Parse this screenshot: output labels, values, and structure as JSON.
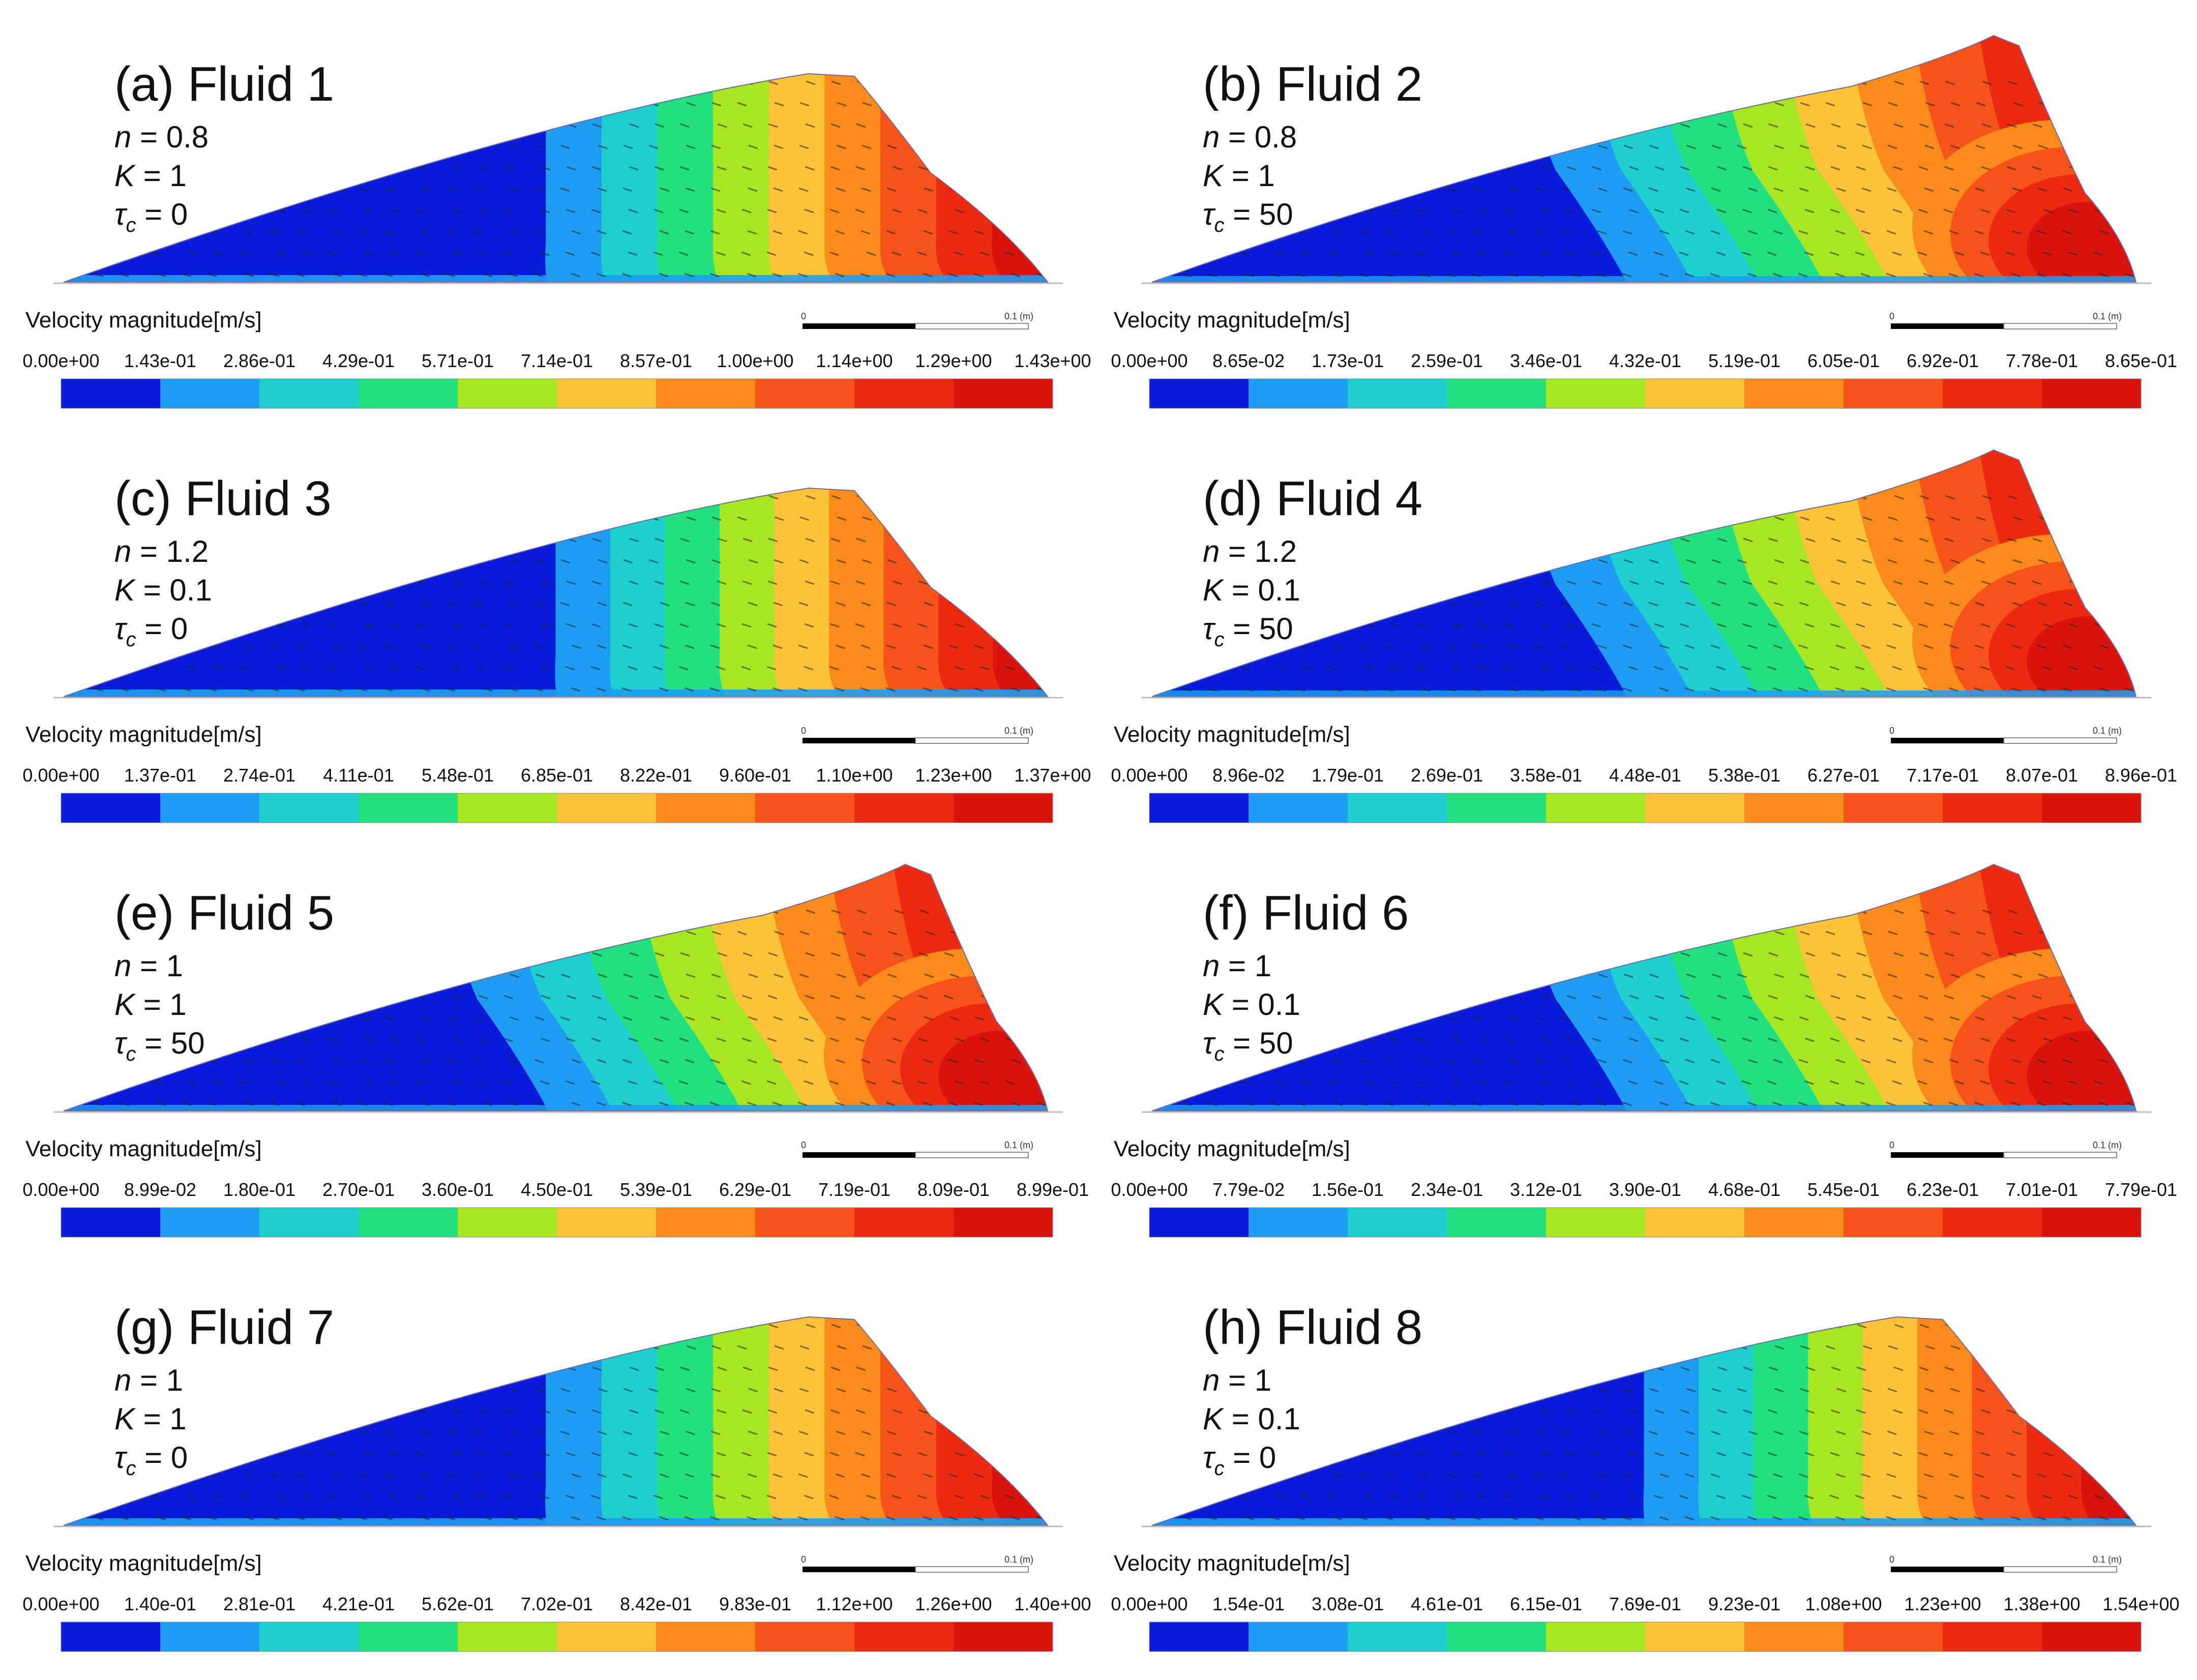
{
  "figure": {
    "legend_label": "Velocity magnitude[m/s]",
    "scale_bar": {
      "start": "0",
      "end": "0.1 (m)"
    },
    "colors": [
      "#0a1bd9",
      "#1f9df2",
      "#1fcfcf",
      "#22e080",
      "#a8e624",
      "#fbc23a",
      "#f98b1c",
      "#f5531a",
      "#ec2a12",
      "#d9140e"
    ],
    "panels": [
      {
        "title": "(a) Fluid 1",
        "params": [
          {
            "symbol": "n",
            "sub": "",
            "eq": " = 0.8"
          },
          {
            "symbol": "K",
            "sub": "",
            "eq": " = 1"
          },
          {
            "symbol": "τ",
            "sub": "c",
            "eq": " = 0"
          }
        ],
        "ticks": [
          "0.00e+00",
          "1.43e-01",
          "2.86e-01",
          "4.29e-01",
          "5.71e-01",
          "7.14e-01",
          "8.57e-01",
          "1.00e+00",
          "1.14e+00",
          "1.29e+00",
          "1.43e+00"
        ],
        "pattern": "vertical",
        "front": 0.49
      },
      {
        "title": "(b) Fluid 2",
        "params": [
          {
            "symbol": "n",
            "sub": "",
            "eq": " = 0.8"
          },
          {
            "symbol": "K",
            "sub": "",
            "eq": " = 1"
          },
          {
            "symbol": "τ",
            "sub": "c",
            "eq": " = 50"
          }
        ],
        "ticks": [
          "0.00e+00",
          "8.65e-02",
          "1.73e-01",
          "2.59e-01",
          "3.46e-01",
          "4.32e-01",
          "5.19e-01",
          "6.05e-01",
          "6.92e-01",
          "7.78e-01",
          "8.65e-01"
        ],
        "pattern": "slanted",
        "front": 0.4
      },
      {
        "title": "(c) Fluid 3",
        "params": [
          {
            "symbol": "n",
            "sub": "",
            "eq": " = 1.2"
          },
          {
            "symbol": "K",
            "sub": "",
            "eq": " = 0.1"
          },
          {
            "symbol": "τ",
            "sub": "c",
            "eq": " = 0"
          }
        ],
        "ticks": [
          "0.00e+00",
          "1.37e-01",
          "2.74e-01",
          "4.11e-01",
          "5.48e-01",
          "6.85e-01",
          "8.22e-01",
          "9.60e-01",
          "1.10e+00",
          "1.23e+00",
          "1.37e+00"
        ],
        "pattern": "vertical",
        "front": 0.5
      },
      {
        "title": "(d) Fluid 4",
        "params": [
          {
            "symbol": "n",
            "sub": "",
            "eq": " = 1.2"
          },
          {
            "symbol": "K",
            "sub": "",
            "eq": " = 0.1"
          },
          {
            "symbol": "τ",
            "sub": "c",
            "eq": " = 50"
          }
        ],
        "ticks": [
          "0.00e+00",
          "8.96e-02",
          "1.79e-01",
          "2.69e-01",
          "3.58e-01",
          "4.48e-01",
          "5.38e-01",
          "6.27e-01",
          "7.17e-01",
          "8.07e-01",
          "8.96e-01"
        ],
        "pattern": "slanted",
        "front": 0.4
      },
      {
        "title": "(e) Fluid 5",
        "params": [
          {
            "symbol": "n",
            "sub": "",
            "eq": " = 1"
          },
          {
            "symbol": "K",
            "sub": "",
            "eq": " = 1"
          },
          {
            "symbol": "τ",
            "sub": "c",
            "eq": " = 50"
          }
        ],
        "ticks": [
          "0.00e+00",
          "8.99e-02",
          "1.80e-01",
          "2.70e-01",
          "3.60e-01",
          "4.50e-01",
          "5.39e-01",
          "6.29e-01",
          "7.19e-01",
          "8.09e-01",
          "8.99e-01"
        ],
        "pattern": "slanted",
        "front": 0.41
      },
      {
        "title": "(f) Fluid 6",
        "params": [
          {
            "symbol": "n",
            "sub": "",
            "eq": " = 1"
          },
          {
            "symbol": "K",
            "sub": "",
            "eq": " = 0.1"
          },
          {
            "symbol": "τ",
            "sub": "c",
            "eq": " = 50"
          }
        ],
        "ticks": [
          "0.00e+00",
          "7.79e-02",
          "1.56e-01",
          "2.34e-01",
          "3.12e-01",
          "3.90e-01",
          "4.68e-01",
          "5.45e-01",
          "6.23e-01",
          "7.01e-01",
          "7.79e-01"
        ],
        "pattern": "slanted",
        "front": 0.4
      },
      {
        "title": "(g) Fluid 7",
        "params": [
          {
            "symbol": "n",
            "sub": "",
            "eq": " = 1"
          },
          {
            "symbol": "K",
            "sub": "",
            "eq": " = 1"
          },
          {
            "symbol": "τ",
            "sub": "c",
            "eq": " = 0"
          }
        ],
        "ticks": [
          "0.00e+00",
          "1.40e-01",
          "2.81e-01",
          "4.21e-01",
          "5.62e-01",
          "7.02e-01",
          "8.42e-01",
          "9.83e-01",
          "1.12e+00",
          "1.26e+00",
          "1.40e+00"
        ],
        "pattern": "vertical",
        "front": 0.49
      },
      {
        "title": "(h) Fluid 8",
        "params": [
          {
            "symbol": "n",
            "sub": "",
            "eq": " = 1"
          },
          {
            "symbol": "K",
            "sub": "",
            "eq": " = 0.1"
          },
          {
            "symbol": "τ",
            "sub": "c",
            "eq": " = 0"
          }
        ],
        "ticks": [
          "0.00e+00",
          "1.54e-01",
          "3.08e-01",
          "4.61e-01",
          "6.15e-01",
          "7.69e-01",
          "9.23e-01",
          "1.08e+00",
          "1.23e+00",
          "1.38e+00",
          "1.54e+00"
        ],
        "pattern": "vertical",
        "front": 0.5
      }
    ]
  }
}
